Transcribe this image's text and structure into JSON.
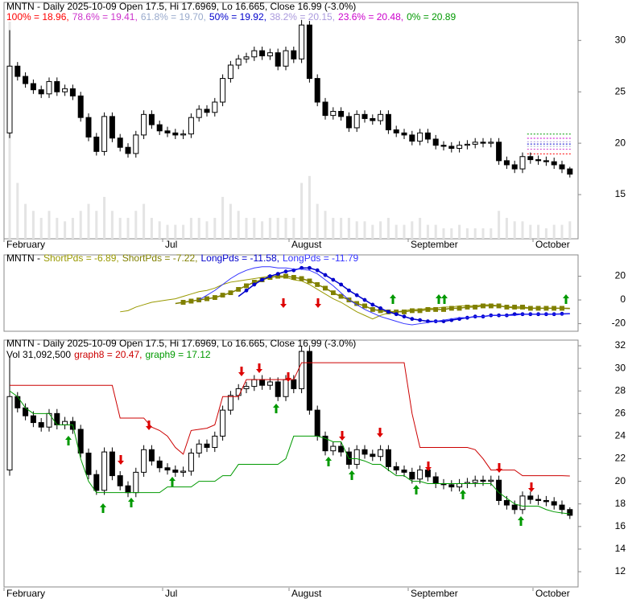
{
  "chart_data": [
    {
      "type": "candlestick",
      "title": "MNTN - Daily 2025-10-09 Open 17.5, Hi 17.6969, Lo 16.665, Close 16.99 (-3.0%)",
      "fib": [
        {
          "name": "100%",
          "label": "100% = 18.96,",
          "value": 18.96,
          "color": "#ff0000"
        },
        {
          "name": "78.6%",
          "label": "78.6% = 19.41,",
          "value": 19.41,
          "color": "#cc33cc"
        },
        {
          "name": "61.8%",
          "label": "61.8% = 19.70,",
          "value": 19.7,
          "color": "#99aacc"
        },
        {
          "name": "50%",
          "label": "50% = 19.92,",
          "value": 19.92,
          "color": "#0000cc"
        },
        {
          "name": "38.2%",
          "label": "38.2% = 20.15,",
          "value": 20.15,
          "color": "#aa99dd"
        },
        {
          "name": "23.6%",
          "label": "23.6% = 20.48,",
          "value": 20.48,
          "color": "#cc00cc"
        },
        {
          "name": "0%",
          "label": "0% = 20.89",
          "value": 20.89,
          "color": "#009900"
        }
      ],
      "open": [
        21.0,
        27.5,
        26.5,
        25.8,
        25.2,
        24.8,
        26.0,
        25.0,
        25.3,
        24.6,
        22.5,
        20.6,
        19.2,
        22.6,
        20.5,
        19.6,
        19.0,
        20.8,
        22.8,
        21.8,
        21.2,
        21.0,
        20.8,
        20.9,
        22.5,
        23.3,
        23.0,
        24.0,
        26.3,
        27.6,
        28.2,
        28.4,
        29.0,
        28.5,
        28.8,
        27.5,
        29.0,
        28.2,
        31.5,
        26.3,
        24.0,
        22.7,
        23.1,
        22.6,
        21.5,
        22.8,
        22.4,
        22.2,
        22.8,
        21.3,
        21.0,
        20.8,
        20.2,
        21.0,
        20.4,
        19.8,
        19.7,
        19.5,
        19.8,
        19.9,
        20.1,
        20.0,
        20.1,
        18.3,
        17.9,
        17.5,
        18.7,
        18.4,
        18.3,
        18.2,
        17.9,
        17.5
      ],
      "high": [
        31.0,
        27.9,
        26.9,
        26.2,
        25.6,
        26.4,
        26.4,
        25.7,
        25.7,
        25.0,
        22.9,
        21.0,
        23.0,
        23.0,
        20.9,
        20.0,
        21.2,
        23.2,
        23.2,
        22.2,
        21.6,
        21.4,
        21.3,
        22.9,
        23.7,
        23.7,
        24.4,
        26.7,
        28.0,
        28.6,
        28.8,
        29.4,
        29.4,
        29.2,
        29.2,
        29.4,
        29.4,
        32.0,
        31.9,
        26.7,
        24.4,
        23.5,
        23.5,
        23.0,
        23.2,
        23.2,
        22.8,
        23.2,
        23.2,
        21.7,
        21.4,
        21.2,
        21.4,
        21.4,
        20.8,
        20.2,
        20.1,
        20.2,
        20.3,
        20.5,
        20.5,
        20.5,
        20.5,
        18.7,
        18.3,
        19.1,
        19.1,
        18.8,
        18.7,
        18.6,
        18.3,
        17.6969
      ],
      "low": [
        20.5,
        26.1,
        25.4,
        24.8,
        24.4,
        24.4,
        24.6,
        24.6,
        24.2,
        22.1,
        20.2,
        18.8,
        18.8,
        20.1,
        19.2,
        18.6,
        18.6,
        20.4,
        21.4,
        20.8,
        20.6,
        20.4,
        20.4,
        20.5,
        22.1,
        22.6,
        22.6,
        23.6,
        25.9,
        27.2,
        27.8,
        28.0,
        28.1,
        28.1,
        27.1,
        27.1,
        27.8,
        27.8,
        25.9,
        23.6,
        22.3,
        22.3,
        22.2,
        21.1,
        21.1,
        22.0,
        21.8,
        21.8,
        20.9,
        20.6,
        20.4,
        19.8,
        19.8,
        20.0,
        19.4,
        19.3,
        19.1,
        19.1,
        19.4,
        19.5,
        19.6,
        19.6,
        17.9,
        17.5,
        17.1,
        17.1,
        18.0,
        17.9,
        17.8,
        17.5,
        17.1,
        16.665
      ],
      "close": [
        27.5,
        26.5,
        25.8,
        25.2,
        24.8,
        26.0,
        25.0,
        25.3,
        24.6,
        22.5,
        20.6,
        19.2,
        22.6,
        20.5,
        19.6,
        19.0,
        20.8,
        22.8,
        21.8,
        21.2,
        21.0,
        20.8,
        20.9,
        22.5,
        23.3,
        23.0,
        24.0,
        26.3,
        27.6,
        28.2,
        28.4,
        29.0,
        28.5,
        28.8,
        27.5,
        29.0,
        28.2,
        31.5,
        26.3,
        24.0,
        22.7,
        23.1,
        22.6,
        21.5,
        22.8,
        22.4,
        22.2,
        22.8,
        21.3,
        21.0,
        20.8,
        20.2,
        21.0,
        20.4,
        19.8,
        19.7,
        19.5,
        19.8,
        19.9,
        20.1,
        20.0,
        20.1,
        18.3,
        17.9,
        17.5,
        18.7,
        18.4,
        18.3,
        18.2,
        17.9,
        17.5,
        16.99
      ],
      "volume": [
        31092500,
        8000000,
        5000000,
        4000000,
        3000000,
        4000000,
        3000000,
        2500000,
        3000000,
        4000000,
        5000000,
        4000000,
        6000000,
        4000000,
        3000000,
        3000000,
        4000000,
        5000000,
        3000000,
        2500000,
        2000000,
        2000000,
        2000000,
        3000000,
        3000000,
        2500000,
        3000000,
        6000000,
        5000000,
        4000000,
        3000000,
        3000000,
        2500000,
        3000000,
        3000000,
        3000000,
        3000000,
        8000000,
        9000000,
        5000000,
        4000000,
        3000000,
        3000000,
        3000000,
        2500000,
        2500000,
        2000000,
        2500000,
        3000000,
        2000000,
        2000000,
        2500000,
        3000000,
        2000000,
        2000000,
        1500000,
        1500000,
        2000000,
        1500000,
        1500000,
        1500000,
        1500000,
        4000000,
        3000000,
        2500000,
        2500000,
        2000000,
        2000000,
        1500000,
        2000000,
        2000000,
        2500000
      ],
      "ylim": [
        10.7,
        33.7
      ],
      "yticks": [
        15,
        20,
        25,
        30
      ],
      "xlabels": [
        "February",
        "Jul",
        "August",
        "September",
        "October"
      ]
    },
    {
      "type": "line",
      "title": "MNTN -",
      "series": [
        {
          "name": "ShortPds",
          "label": "ShortPds = -6.89,",
          "color": "#999900",
          "values": [
            null,
            null,
            null,
            null,
            null,
            null,
            null,
            null,
            null,
            null,
            null,
            null,
            null,
            null,
            -10,
            -9,
            -6,
            -4,
            -2,
            -1,
            0,
            1,
            3,
            5,
            7,
            8,
            10,
            13,
            15,
            16,
            17,
            18,
            19,
            20,
            19,
            19,
            17,
            16,
            13,
            9,
            5,
            1,
            -2,
            -6,
            -10,
            -13,
            -16,
            -13,
            -11,
            -10,
            -9,
            -8,
            -8,
            -7,
            -7,
            -6,
            -6,
            -5,
            -5,
            -5,
            -4,
            -4,
            -5,
            -6,
            -7,
            -7,
            -7,
            -7,
            -7,
            -7,
            -7,
            -6.89
          ]
        },
        {
          "name": "ShortPds",
          "label": "ShortPds = -7.22,",
          "color": "#808000",
          "values": [
            null,
            null,
            null,
            null,
            null,
            null,
            null,
            null,
            null,
            null,
            null,
            null,
            null,
            null,
            null,
            null,
            null,
            null,
            null,
            null,
            null,
            -3,
            -2,
            -1,
            0,
            1,
            2,
            4,
            6,
            9,
            12,
            15,
            17,
            19,
            20,
            20,
            19,
            18,
            16,
            13,
            10,
            6,
            3,
            0,
            -3,
            -5,
            -8,
            -9,
            -10,
            -10,
            -10,
            -9,
            -9,
            -8,
            -8,
            -8,
            -7,
            -7,
            -6,
            -6,
            -5,
            -5,
            -5,
            -6,
            -6,
            -6,
            -7,
            -7,
            -7,
            -7,
            -7,
            -7.22
          ]
        },
        {
          "name": "LongPds",
          "label": "LongPds = -11.58,",
          "color": "#0000cc",
          "values": [
            null,
            null,
            null,
            null,
            null,
            null,
            null,
            null,
            null,
            null,
            null,
            null,
            null,
            null,
            null,
            null,
            null,
            null,
            null,
            null,
            null,
            null,
            null,
            null,
            null,
            null,
            null,
            null,
            null,
            3,
            8,
            13,
            17,
            20,
            22,
            24,
            25,
            27,
            27,
            25,
            21,
            17,
            13,
            8,
            4,
            0,
            -4,
            -7,
            -10,
            -12,
            -14,
            -16,
            -17,
            -18,
            -18,
            -18,
            -17,
            -16,
            -15,
            -14,
            -14,
            -13,
            -13,
            -13,
            -12,
            -12,
            -12,
            -12,
            -12,
            -12,
            -11.7,
            -11.58
          ]
        },
        {
          "name": "LongPds",
          "label": "LongPds = -11.79",
          "color": "#3333ff",
          "values": [
            null,
            null,
            null,
            null,
            null,
            null,
            null,
            null,
            null,
            null,
            null,
            null,
            null,
            null,
            null,
            null,
            null,
            null,
            null,
            null,
            null,
            null,
            null,
            null,
            0,
            4,
            8,
            13,
            18,
            22,
            25,
            27,
            28,
            28,
            27,
            27,
            26,
            26,
            25,
            22,
            17,
            12,
            6,
            0,
            -4,
            -8,
            -11,
            -14,
            -16,
            -18,
            -20,
            -21,
            -20,
            -19,
            -18,
            -17,
            -16,
            -15,
            -15,
            -14,
            -14,
            -13,
            -13,
            -13,
            -13,
            -12,
            -12,
            -12,
            -12,
            -12,
            -12,
            -11.79
          ]
        }
      ],
      "ylim": [
        -26.4,
        38
      ],
      "yticks": [
        -20,
        0,
        20
      ]
    },
    {
      "type": "candlestick",
      "title": "MNTN - Daily 2025-10-09 Open 17.5, Hi 17.6969, Lo 16.665, Close 16.99 (-3.0%)",
      "subtitle": "Vol 31,092,500",
      "series": [
        {
          "name": "graph8",
          "label": "graph8 = 20.47,",
          "color": "#cc0000",
          "values": [
            28.5,
            28.5,
            28.5,
            28.5,
            28.5,
            28.5,
            28.5,
            28.5,
            28.5,
            28.5,
            28.5,
            28.5,
            28.5,
            28.5,
            25.6,
            25.6,
            25.6,
            25.6,
            24.8,
            24.5,
            24.0,
            23.0,
            22.4,
            24.5,
            24.6,
            24.7,
            25.0,
            27.5,
            27.5,
            27.5,
            29.0,
            29.0,
            29.0,
            29.0,
            29.0,
            29.0,
            29.0,
            30.5,
            30.5,
            30.5,
            30.5,
            30.5,
            30.5,
            30.5,
            30.5,
            30.5,
            30.5,
            30.5,
            30.5,
            30.5,
            30.5,
            26.0,
            23.0,
            23.0,
            23.0,
            23.0,
            23.0,
            23.0,
            23.0,
            22.8,
            22.0,
            21.0,
            21.0,
            21.0,
            21.0,
            20.5,
            20.5,
            20.5,
            20.5,
            20.5,
            20.5,
            20.47
          ]
        },
        {
          "name": "graph9",
          "label": "graph9 = 17.12",
          "color": "#009900",
          "values": [
            28,
            27.5,
            26.5,
            26,
            26,
            26,
            25,
            25,
            25,
            22,
            20,
            19,
            19,
            19,
            19,
            19,
            19,
            19,
            19,
            19,
            19.5,
            19.5,
            19.5,
            19.5,
            20,
            20,
            20,
            20.5,
            20.5,
            21.5,
            21.5,
            21.5,
            21.5,
            21.5,
            21.5,
            22,
            24,
            24,
            24,
            24,
            23.8,
            23.5,
            23.5,
            22,
            22,
            21.8,
            21.5,
            21.5,
            21,
            20.5,
            20.5,
            20,
            20,
            19.8,
            19.8,
            19.8,
            19.8,
            19.8,
            19.8,
            19.8,
            19.8,
            19.8,
            19,
            18.5,
            18,
            17.8,
            17.8,
            17.8,
            17.5,
            17.3,
            17.2,
            17.12
          ]
        }
      ],
      "ylim": [
        10.65,
        32.5
      ],
      "yticks": [
        12,
        14,
        16,
        18,
        20,
        22,
        24,
        26,
        28,
        30,
        32
      ],
      "xlabels": [
        "February",
        "Jul",
        "August",
        "September",
        "October"
      ]
    }
  ]
}
